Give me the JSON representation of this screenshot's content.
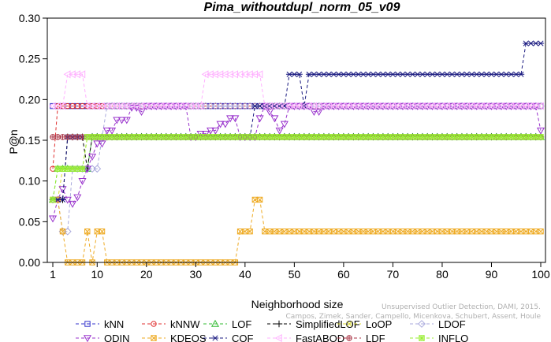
{
  "chart_data": {
    "type": "line",
    "title": "Pima_withoutdupl_norm_05_v09",
    "xlabel": "Neighborhood size",
    "ylabel": "P@n",
    "xlim": [
      1,
      100
    ],
    "ylim": [
      0,
      0.3
    ],
    "xticks": [
      "1",
      "10",
      "20",
      "30",
      "40",
      "50",
      "60",
      "70",
      "80",
      "90",
      "100"
    ],
    "yticks": [
      "0.00",
      "0.05",
      "0.10",
      "0.15",
      "0.20",
      "0.25",
      "0.30"
    ],
    "grid": false,
    "legend_position": "bottom",
    "credit": "Campos, Zimek, Sander, Campello, Micenkova, Schubert, Assent, Houle",
    "credit_line2": "Unsupervised Outlier Detection, DAMI, 2015.",
    "series": [
      {
        "name": "kNN",
        "color": "#3333cc",
        "marker": "square",
        "segments": [
          [
            1,
            0.192
          ],
          [
            100,
            0.192
          ]
        ]
      },
      {
        "name": "kNNW",
        "color": "#e03030",
        "marker": "circle",
        "segments": [
          [
            1,
            0.115
          ],
          [
            2,
            0.192
          ],
          [
            100,
            0.192
          ]
        ]
      },
      {
        "name": "LOF",
        "color": "#33bb33",
        "marker": "triangle-up",
        "segments": [
          [
            1,
            0.077
          ],
          [
            2,
            0.115
          ],
          [
            8,
            0.115
          ],
          [
            9,
            0.154
          ],
          [
            100,
            0.154
          ]
        ]
      },
      {
        "name": "SimplifiedLOF",
        "color": "#000000",
        "marker": "plus",
        "segments": [
          [
            1,
            0.077
          ],
          [
            3,
            0.077
          ],
          [
            4,
            0.154
          ],
          [
            7,
            0.154
          ],
          [
            8,
            0.115
          ],
          [
            9,
            0.154
          ],
          [
            100,
            0.154
          ]
        ]
      },
      {
        "name": "LoOP",
        "color": "#dddd33",
        "marker": "x",
        "segments": [
          [
            1,
            0.077
          ],
          [
            3,
            0.115
          ],
          [
            7,
            0.115
          ],
          [
            8,
            0.154
          ],
          [
            100,
            0.154
          ]
        ]
      },
      {
        "name": "LDOF",
        "color": "#aaaadd",
        "marker": "diamond",
        "segments": [
          [
            1,
            0.077
          ],
          [
            3,
            0.038
          ],
          [
            5,
            0.115
          ],
          [
            10,
            0.115
          ],
          [
            11,
            0.154
          ],
          [
            12,
            0.192
          ],
          [
            100,
            0.192
          ]
        ]
      },
      {
        "name": "ODIN",
        "color": "#9933cc",
        "marker": "triangle-down",
        "segments": [
          [
            1,
            0.054
          ],
          [
            2,
            0.077
          ],
          [
            3,
            0.09
          ],
          [
            4,
            0.077
          ],
          [
            5,
            0.072
          ],
          [
            6,
            0.08
          ],
          [
            7,
            0.1
          ],
          [
            8,
            0.115
          ],
          [
            9,
            0.13
          ],
          [
            10,
            0.146
          ],
          [
            12,
            0.162
          ],
          [
            14,
            0.175
          ],
          [
            17,
            0.19
          ],
          [
            19,
            0.185
          ],
          [
            20,
            0.192
          ],
          [
            28,
            0.192
          ],
          [
            29,
            0.154
          ],
          [
            31,
            0.158
          ],
          [
            33,
            0.162
          ],
          [
            35,
            0.17
          ],
          [
            37,
            0.177
          ],
          [
            39,
            0.154
          ],
          [
            43,
            0.177
          ],
          [
            44,
            0.192
          ],
          [
            45,
            0.185
          ],
          [
            46,
            0.177
          ],
          [
            47,
            0.162
          ],
          [
            48,
            0.17
          ],
          [
            49,
            0.192
          ],
          [
            53,
            0.192
          ],
          [
            54,
            0.185
          ],
          [
            56,
            0.192
          ],
          [
            99,
            0.192
          ],
          [
            100,
            0.162
          ]
        ]
      },
      {
        "name": "KDEOS",
        "color": "#eeaa22",
        "marker": "square-x",
        "segments": [
          [
            1,
            0.077
          ],
          [
            2,
            0.077
          ],
          [
            3,
            0.038
          ],
          [
            4,
            0.0
          ],
          [
            7,
            0.0
          ],
          [
            8,
            0.038
          ],
          [
            9,
            0.0
          ],
          [
            10,
            0.038
          ],
          [
            11,
            0.038
          ],
          [
            12,
            0.0
          ],
          [
            38,
            0.0
          ],
          [
            39,
            0.038
          ],
          [
            41,
            0.038
          ],
          [
            42,
            0.077
          ],
          [
            43,
            0.077
          ],
          [
            44,
            0.038
          ],
          [
            100,
            0.038
          ]
        ]
      },
      {
        "name": "COF",
        "color": "#1a1a80",
        "marker": "asterisk",
        "segments": [
          [
            1,
            0.077
          ],
          [
            3,
            0.077
          ],
          [
            4,
            0.154
          ],
          [
            10,
            0.154
          ],
          [
            11,
            0.154
          ],
          [
            19,
            0.154
          ],
          [
            20,
            0.154
          ],
          [
            40,
            0.154
          ],
          [
            41,
            0.154
          ],
          [
            42,
            0.192
          ],
          [
            48,
            0.192
          ],
          [
            49,
            0.231
          ],
          [
            51,
            0.231
          ],
          [
            52,
            0.192
          ],
          [
            53,
            0.231
          ],
          [
            96,
            0.231
          ],
          [
            97,
            0.269
          ],
          [
            100,
            0.269
          ]
        ]
      },
      {
        "name": "FastABOD",
        "color": "#ffb0ff",
        "marker": "triangle-left",
        "segments": [
          [
            1,
            0.192
          ],
          [
            3,
            0.192
          ],
          [
            4,
            0.231
          ],
          [
            7,
            0.231
          ],
          [
            8,
            0.192
          ],
          [
            31,
            0.192
          ],
          [
            32,
            0.231
          ],
          [
            43,
            0.231
          ],
          [
            44,
            0.192
          ],
          [
            100,
            0.192
          ]
        ]
      },
      {
        "name": "LDF",
        "color": "#aa3344",
        "marker": "circle-plus",
        "segments": [
          [
            1,
            0.154
          ],
          [
            100,
            0.154
          ]
        ]
      },
      {
        "name": "INFLO",
        "color": "#99ee33",
        "marker": "square-star",
        "segments": [
          [
            1,
            0.077
          ],
          [
            2,
            0.115
          ],
          [
            7,
            0.115
          ],
          [
            8,
            0.154
          ],
          [
            100,
            0.154
          ]
        ]
      }
    ]
  }
}
